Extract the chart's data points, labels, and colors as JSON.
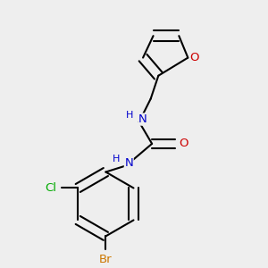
{
  "background_color": "#eeeeee",
  "atom_colors": {
    "C": "#000000",
    "H": "#000000",
    "N": "#0000cc",
    "O": "#cc0000",
    "Br": "#cc7700",
    "Cl": "#00aa00"
  },
  "bond_color": "#000000",
  "bond_width": 1.5
}
